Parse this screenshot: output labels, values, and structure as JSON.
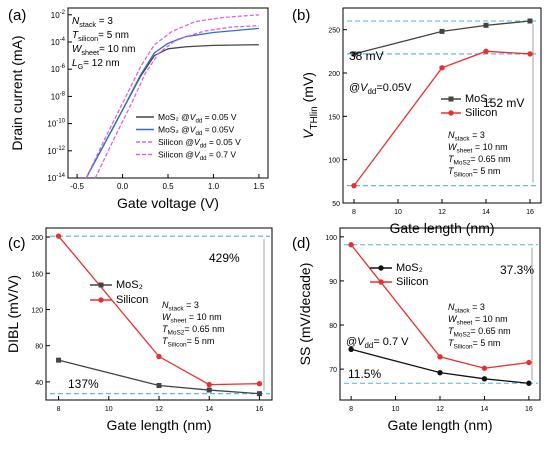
{
  "colors": {
    "mos2": "#444444",
    "mos2_blue": "#2a6fd1",
    "silicon": "#e83030",
    "silicon_dash": "#e060e0",
    "ref_dash": "#4ab6e6",
    "axis": "#000000"
  },
  "chart_data": [
    {
      "panel": "(a)",
      "type": "line",
      "xlabel": "Gate voltage (V)",
      "ylabel": "Drain current (mA)",
      "xlim": [
        -0.6,
        1.6
      ],
      "y_scale": "log",
      "ylim_exp": [
        -14,
        -1.5
      ],
      "x_ticks": [
        "-0.5",
        "0.0",
        "0.5",
        "1.0",
        "1.5"
      ],
      "y_ticks": [
        "10⁻²",
        "10⁻⁴",
        "10⁻⁶",
        "10⁻⁸",
        "10⁻¹⁰",
        "10⁻¹²",
        "10⁻¹⁴"
      ],
      "annotations": [
        "N_stack = 3",
        "T_silicon= 5 nm",
        "W_sheet= 10 nm",
        "L_G= 12 nm"
      ],
      "legend_position": "bottom-right",
      "series": [
        {
          "name": "MoS2 @V_dd = 0.05 V",
          "style": "solid",
          "color": "#444444",
          "x": [
            -0.4,
            -0.2,
            0.0,
            0.2,
            0.35,
            0.5,
            0.7,
            1.0,
            1.5
          ],
          "log10_y": [
            -14,
            -11.5,
            -9.0,
            -6.5,
            -5.0,
            -4.5,
            -4.35,
            -4.25,
            -4.2
          ]
        },
        {
          "name": "MoS2 @V_dd = 0.05V",
          "style": "solid",
          "color": "#2a6fd1",
          "x": [
            -0.4,
            -0.2,
            0.0,
            0.2,
            0.35,
            0.5,
            0.7,
            1.0,
            1.5
          ],
          "log10_y": [
            -14,
            -11.5,
            -9.0,
            -6.4,
            -4.8,
            -4.1,
            -3.6,
            -3.3,
            -3.0
          ]
        },
        {
          "name": "Silicon @V_dd = 0.05 V",
          "style": "dashed",
          "color": "#e060e0",
          "x": [
            -0.3,
            -0.1,
            0.1,
            0.25,
            0.4,
            0.6,
            0.9,
            1.2,
            1.5
          ],
          "log10_y": [
            -14,
            -11.2,
            -8.5,
            -6.3,
            -4.8,
            -3.8,
            -3.2,
            -2.9,
            -2.8
          ]
        },
        {
          "name": "Silicon @V_dd = 0.7 V",
          "style": "dashed",
          "color": "#e060e0",
          "x": [
            -0.4,
            -0.2,
            0.0,
            0.2,
            0.35,
            0.55,
            0.8,
            1.1,
            1.5
          ],
          "log10_y": [
            -14,
            -11.2,
            -8.5,
            -5.8,
            -4.2,
            -3.2,
            -2.5,
            -2.2,
            -2.0
          ]
        }
      ],
      "legend": [
        "MoS₂ @V_dd = 0.05 V",
        "MoS₂ @V_dd = 0.05V",
        "Silicon @V_dd = 0.05 V",
        "Silicon @V_dd = 0.7 V"
      ]
    },
    {
      "panel": "(b)",
      "type": "line",
      "xlabel": "Gate length (nm)",
      "ylabel": "V_THlin (mV)",
      "xlim": [
        7.5,
        16.5
      ],
      "ylim": [
        50,
        275
      ],
      "x_ticks": [
        8,
        10,
        12,
        14,
        16
      ],
      "y_ticks": [
        50,
        100,
        150,
        200,
        250
      ],
      "categories": [
        8,
        12,
        14,
        16
      ],
      "series": [
        {
          "name": "MoS2",
          "color": "#444444",
          "marker": "square",
          "values": [
            222,
            248,
            255,
            260
          ]
        },
        {
          "name": "Silicon",
          "color": "#e83030",
          "marker": "circle",
          "values": [
            70,
            206,
            225,
            222
          ]
        }
      ],
      "ref_lines": [
        260,
        222,
        70
      ],
      "annotations": {
        "mos2_delta": "38 mV",
        "si_delta": "152 mV",
        "bias": "@V_dd=0.05V",
        "params": [
          "N_stack = 3",
          "W_sheet = 10 nm",
          "T_MoS2= 0.65 nm",
          "T_Silicon= 5 nm"
        ]
      },
      "legend": [
        "MoS₂",
        "Silicon"
      ],
      "legend_position": "middle-right"
    },
    {
      "panel": "(c)",
      "type": "line",
      "xlabel": "Gate length (nm)",
      "ylabel": "DIBL (mV/V)",
      "xlim": [
        7.5,
        16.5
      ],
      "ylim": [
        20,
        210
      ],
      "x_ticks": [
        8,
        10,
        12,
        14,
        16
      ],
      "y_ticks": [
        40,
        80,
        120,
        160,
        200
      ],
      "categories": [
        8,
        12,
        14,
        16
      ],
      "series": [
        {
          "name": "MoS2",
          "color": "#444444",
          "marker": "square",
          "values": [
            64,
            36,
            31,
            27
          ]
        },
        {
          "name": "Silicon",
          "color": "#e83030",
          "marker": "circle",
          "values": [
            201,
            68,
            37,
            38
          ]
        }
      ],
      "ref_lines": [
        201,
        27
      ],
      "annotations": {
        "si_delta": "429%",
        "mos2_delta": "137%",
        "params": [
          "N_stack = 3",
          "W_sheet = 10 nm",
          "T_MoS2= 0.65 nm",
          "T_Silicon= 5 nm"
        ]
      },
      "legend": [
        "MoS₂",
        "Silicon"
      ],
      "legend_position": "top-left"
    },
    {
      "panel": "(d)",
      "type": "line",
      "xlabel": "Gate length (nm)",
      "ylabel": "SS (mV/decade)",
      "xlim": [
        7.5,
        16.5
      ],
      "ylim": [
        63,
        102
      ],
      "x_ticks": [
        8,
        10,
        12,
        14,
        16
      ],
      "y_ticks": [
        70,
        80,
        90,
        100
      ],
      "categories": [
        8,
        12,
        14,
        16
      ],
      "series": [
        {
          "name": "MoS2",
          "color": "#111111",
          "marker": "circle",
          "values": [
            74.5,
            69.2,
            67.8,
            66.8
          ]
        },
        {
          "name": "Silicon",
          "color": "#e83030",
          "marker": "circle",
          "values": [
            98.2,
            72.8,
            70.2,
            71.5
          ]
        }
      ],
      "ref_lines": [
        98.2,
        66.8
      ],
      "annotations": {
        "si_delta": "37.3%",
        "mos2_delta": "11.5%",
        "bias": "@V_dd= 0.7 V",
        "params": [
          "N_stack = 3",
          "W_sheet = 10 nm",
          "T_MoS2= 0.65 nm",
          "T_Silicon= 5 nm"
        ]
      },
      "legend": [
        "MoS₂",
        "Silicon"
      ],
      "legend_position": "top-left"
    }
  ]
}
